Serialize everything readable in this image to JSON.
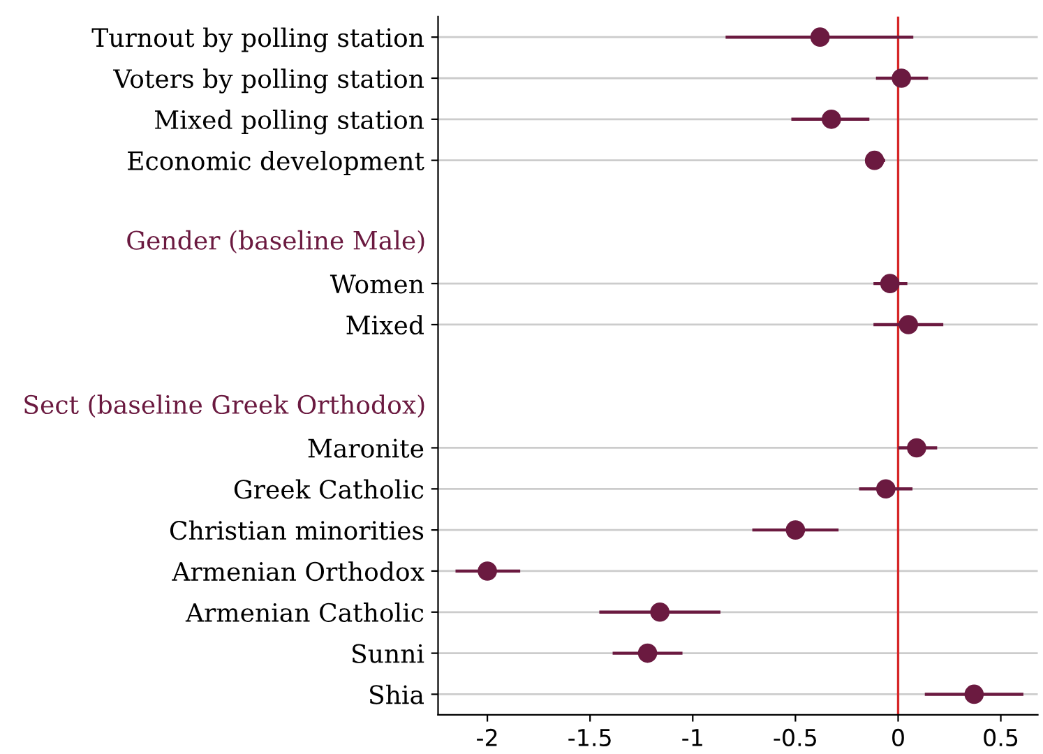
{
  "chart_data": {
    "type": "scatter",
    "orientation": "horizontal",
    "categories": [
      "Turnout by polling station",
      "Voters by polling station",
      "Mixed polling station",
      "Economic development",
      null,
      "Gender (baseline Male)",
      "Women",
      "Mixed",
      null,
      "Sect (baseline Greek Orthodox)",
      "Maronite",
      "Greek Catholic",
      "Christian minorities",
      "Armenian Orthodox",
      "Armenian Catholic",
      "Sunni",
      "Shia"
    ],
    "series": [
      {
        "color": "#6b1a40",
        "values": [
          -0.38,
          0.016,
          -0.325,
          -0.115,
          null,
          null,
          -0.04,
          0.05,
          null,
          null,
          0.09,
          -0.06,
          -0.5,
          -2.0,
          -1.16,
          -1.22,
          0.37
        ],
        "errors": [
          [
            -0.84,
            0.074
          ],
          [
            -0.108,
            0.146
          ],
          [
            -0.52,
            -0.14
          ],
          [
            -0.15,
            -0.063
          ],
          null,
          null,
          [
            -0.12,
            0.045
          ],
          [
            -0.12,
            0.22
          ],
          null,
          null,
          [
            0.0,
            0.19
          ],
          [
            -0.19,
            0.07
          ],
          [
            -0.71,
            -0.29
          ],
          [
            -2.155,
            -1.84
          ],
          [
            -1.455,
            -0.865
          ],
          [
            -1.39,
            -1.05
          ],
          [
            0.13,
            0.61
          ]
        ]
      }
    ],
    "xlim": [
      -2.24,
      0.68
    ],
    "xticks": [
      -2,
      -1.5,
      -1,
      -0.5,
      0,
      0.5
    ],
    "ref_lines": [
      {
        "axis": "x",
        "value": 0,
        "color": "#d62728"
      }
    ],
    "grid": "y",
    "marker": "circle"
  }
}
